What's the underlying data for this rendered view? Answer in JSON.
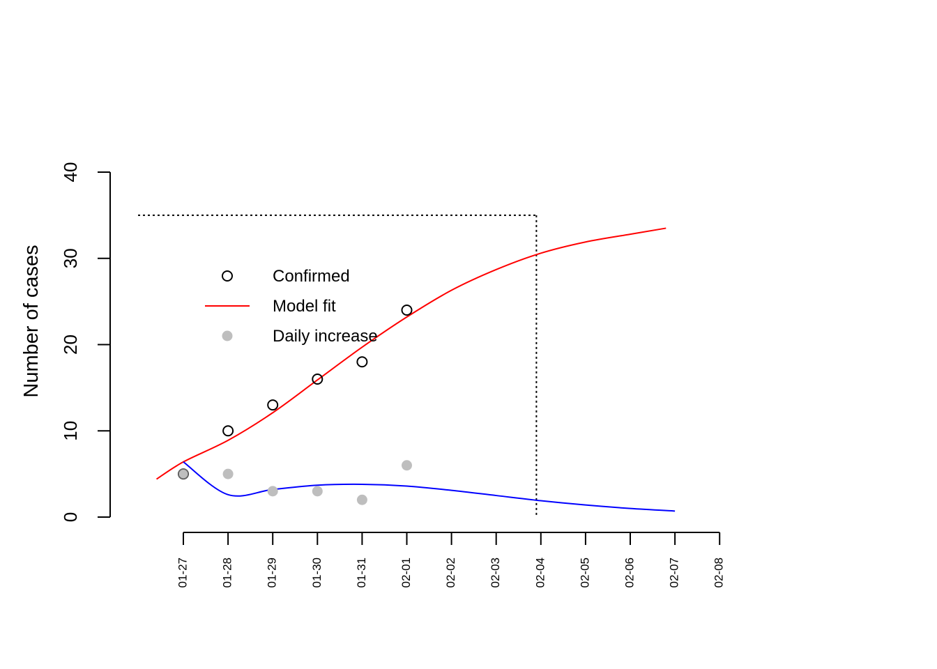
{
  "chart_data": {
    "type": "line",
    "ylabel": "Number of cases",
    "xlabel": "",
    "ylim": [
      0,
      40
    ],
    "yticks": [
      0,
      10,
      20,
      30,
      40
    ],
    "x_dates": [
      "01-27",
      "01-28",
      "01-29",
      "01-30",
      "01-31",
      "02-01",
      "02-02",
      "02-03",
      "02-04",
      "02-05",
      "02-06",
      "02-07",
      "02-08"
    ],
    "series": [
      {
        "name": "Confirmed",
        "kind": "points-open-circle",
        "color": "#000000",
        "x": [
          "01-27",
          "01-28",
          "01-29",
          "01-30",
          "01-31",
          "02-01"
        ],
        "values": [
          5,
          10,
          13,
          16,
          18,
          24
        ]
      },
      {
        "name": "Model fit",
        "kind": "line",
        "color": "#ff0000",
        "x": [
          "01-26.4",
          "01-27",
          "01-28",
          "01-29",
          "01-30",
          "01-31",
          "02-01",
          "02-02",
          "02-03",
          "02-04",
          "02-05",
          "02-06",
          "02-06.8"
        ],
        "values": [
          4.4,
          6.4,
          8.9,
          12.1,
          15.9,
          19.7,
          23.2,
          26.3,
          28.7,
          30.6,
          31.9,
          32.8,
          33.5
        ]
      },
      {
        "name": "Daily increase",
        "kind": "points-filled",
        "color": "#bebebe",
        "x": [
          "01-27",
          "01-28",
          "01-29",
          "01-30",
          "01-31",
          "02-01"
        ],
        "values": [
          5,
          5,
          3,
          3,
          2,
          6
        ]
      },
      {
        "kind": "line",
        "color": "#0000ff",
        "x": [
          "01-27",
          "01-28",
          "01-29",
          "01-30",
          "01-31",
          "02-01",
          "02-02",
          "02-03",
          "02-04",
          "02-05",
          "02-06",
          "02-07"
        ],
        "values": [
          6.4,
          2.6,
          3.2,
          3.7,
          3.8,
          3.6,
          3.1,
          2.5,
          1.9,
          1.4,
          1.0,
          0.7
        ]
      }
    ],
    "reference_lines": {
      "horizontal": {
        "y": 35,
        "style": "dotted",
        "color": "#000000"
      },
      "vertical": {
        "x": "02-03.9",
        "style": "dotted",
        "color": "#000000"
      }
    },
    "legend": {
      "placement": "upper-left inside plot",
      "entries": [
        {
          "label": "Confirmed",
          "symbol": "open-circle",
          "color": "#000000"
        },
        {
          "label": "Model fit",
          "symbol": "line",
          "color": "#ff0000"
        },
        {
          "label": "Daily increase",
          "symbol": "filled-circle",
          "color": "#bebebe"
        }
      ]
    },
    "grid": false
  }
}
